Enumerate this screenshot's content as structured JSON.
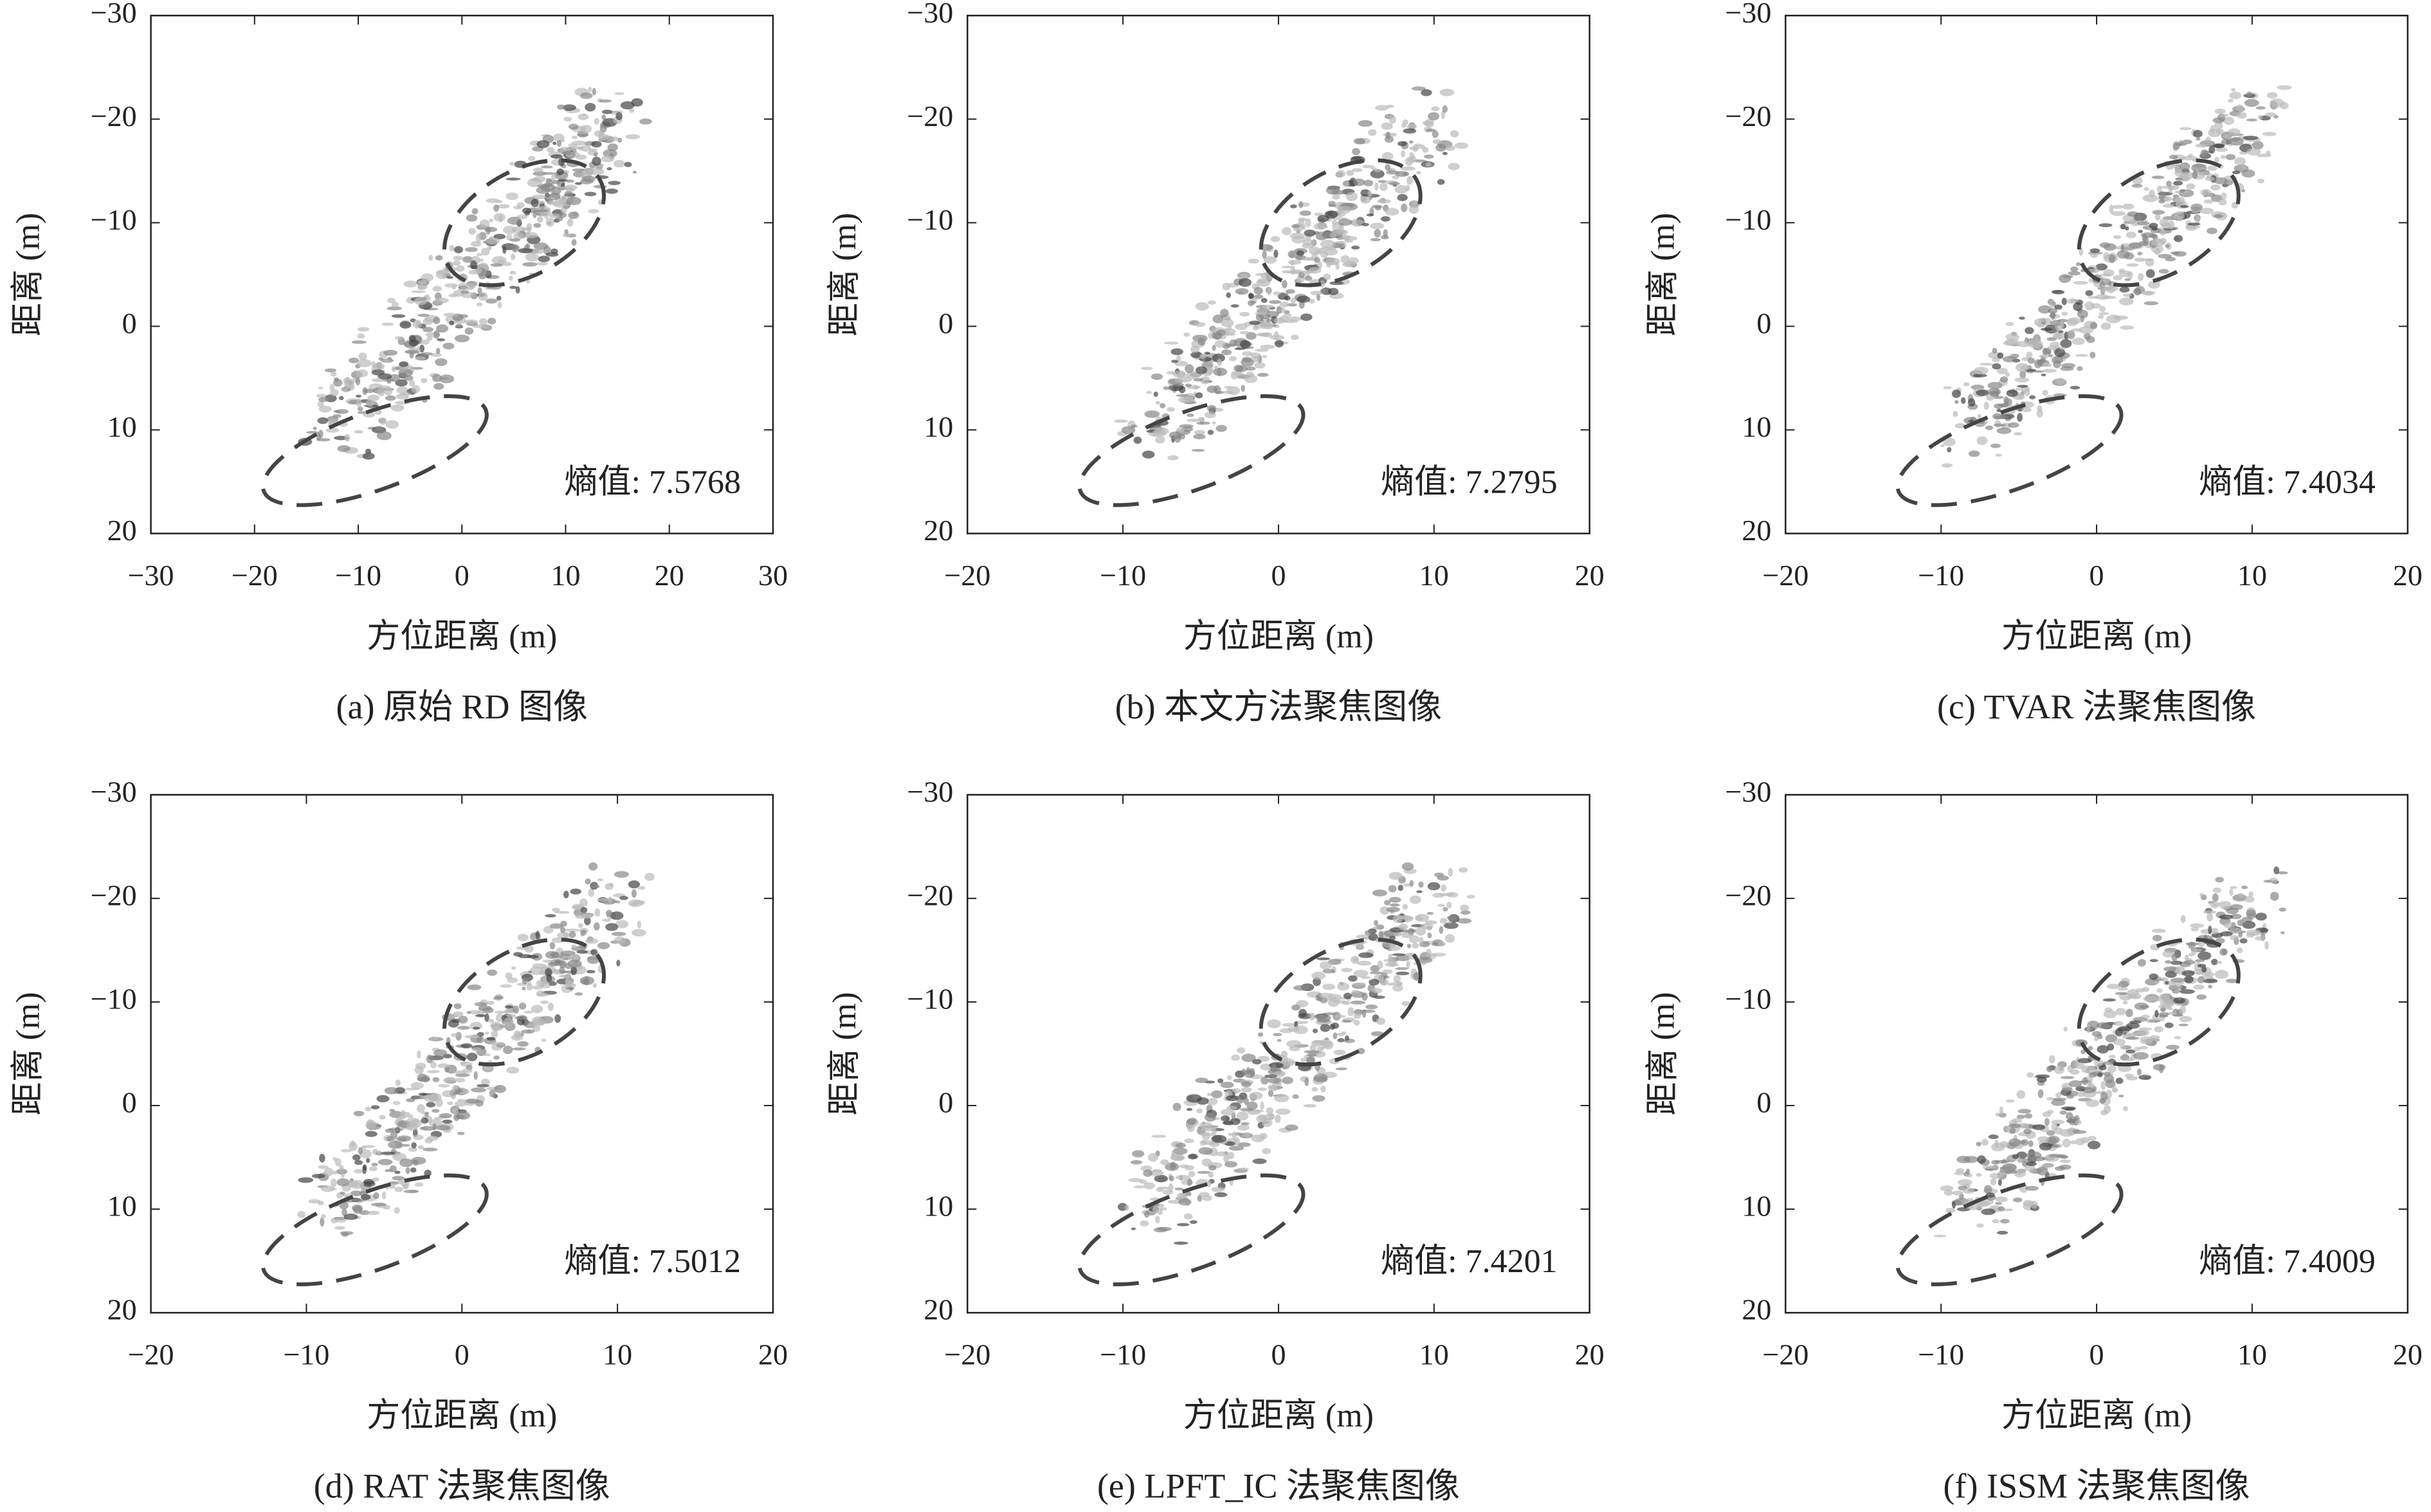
{
  "chart_data": [
    {
      "type": "image",
      "caption": "(a) 原始 RD 图像",
      "xlabel": "方位距离 (m)",
      "ylabel": "距离 (m)",
      "annotation": "熵值: 7.5768",
      "xlim": [
        -30,
        30
      ],
      "xticks": [
        {
          "value": -30,
          "label": "−30"
        },
        {
          "value": -20,
          "label": "−20"
        },
        {
          "value": -10,
          "label": "−10"
        },
        0,
        10,
        20,
        30
      ],
      "ylim": [
        20,
        -30
      ],
      "yticks": [
        {
          "value": -30,
          "label": "−30"
        },
        {
          "value": -20,
          "label": "−20"
        },
        {
          "value": -10,
          "label": "−10"
        },
        0,
        10,
        20
      ]
    },
    {
      "type": "image",
      "caption": "(b) 本文方法聚焦图像",
      "xlabel": "方位距离 (m)",
      "ylabel": "距离 (m)",
      "annotation": "熵值: 7.2795",
      "xlim": [
        -20,
        20
      ],
      "xticks": [
        {
          "value": -20,
          "label": "−20"
        },
        {
          "value": -10,
          "label": "−10"
        },
        0,
        10,
        20
      ],
      "ylim": [
        20,
        -30
      ],
      "yticks": [
        {
          "value": -30,
          "label": "−30"
        },
        {
          "value": -20,
          "label": "−20"
        },
        {
          "value": -10,
          "label": "−10"
        },
        0,
        10,
        20
      ]
    },
    {
      "type": "image",
      "caption": "(c) TVAR 法聚焦图像",
      "xlabel": "方位距离 (m)",
      "ylabel": "距离 (m)",
      "annotation": "熵值: 7.4034",
      "xlim": [
        -20,
        20
      ],
      "xticks": [
        {
          "value": -20,
          "label": "−20"
        },
        {
          "value": -10,
          "label": "−10"
        },
        0,
        10,
        20
      ],
      "ylim": [
        20,
        -30
      ],
      "yticks": [
        {
          "value": -30,
          "label": "−30"
        },
        {
          "value": -20,
          "label": "−20"
        },
        {
          "value": -10,
          "label": "−10"
        },
        0,
        10,
        20
      ]
    },
    {
      "type": "image",
      "caption": "(d) RAT 法聚焦图像",
      "xlabel": "方位距离 (m)",
      "ylabel": "距离 (m)",
      "annotation": "熵值: 7.5012",
      "xlim": [
        -20,
        20
      ],
      "xticks": [
        {
          "value": -20,
          "label": "−20"
        },
        {
          "value": -10,
          "label": "−10"
        },
        0,
        10,
        20
      ],
      "ylim": [
        20,
        -30
      ],
      "yticks": [
        {
          "value": -30,
          "label": "−30"
        },
        {
          "value": -20,
          "label": "−20"
        },
        {
          "value": -10,
          "label": "−10"
        },
        0,
        10,
        20
      ]
    },
    {
      "type": "image",
      "caption": "(e) LPFT_IC 法聚焦图像",
      "xlabel": "方位距离 (m)",
      "ylabel": "距离 (m)",
      "annotation": "熵值: 7.4201",
      "xlim": [
        -20,
        20
      ],
      "xticks": [
        {
          "value": -20,
          "label": "−20"
        },
        {
          "value": -10,
          "label": "−10"
        },
        0,
        10,
        20
      ],
      "ylim": [
        20,
        -30
      ],
      "yticks": [
        {
          "value": -30,
          "label": "−30"
        },
        {
          "value": -20,
          "label": "−20"
        },
        {
          "value": -10,
          "label": "−10"
        },
        0,
        10,
        20
      ]
    },
    {
      "type": "image",
      "caption": "(f) ISSM 法聚焦图像",
      "xlabel": "方位距离 (m)",
      "ylabel": "距离 (m)",
      "annotation": "熵值: 7.4009",
      "xlim": [
        -20,
        20
      ],
      "xticks": [
        {
          "value": -20,
          "label": "−20"
        },
        {
          "value": -10,
          "label": "−10"
        },
        0,
        10,
        20
      ],
      "ylim": [
        20,
        -30
      ],
      "yticks": [
        {
          "value": -30,
          "label": "−30"
        },
        {
          "value": -20,
          "label": "−20"
        },
        {
          "value": -10,
          "label": "−10"
        },
        0,
        10,
        20
      ]
    }
  ]
}
